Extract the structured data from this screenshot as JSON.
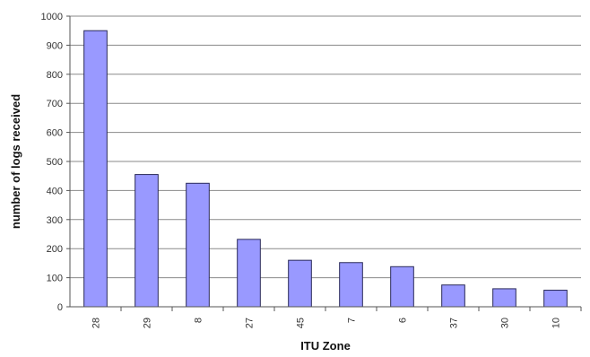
{
  "chart_data": {
    "type": "bar",
    "title": "",
    "xlabel": "ITU Zone",
    "ylabel": "number of logs received",
    "categories": [
      "28",
      "29",
      "8",
      "27",
      "45",
      "7",
      "6",
      "37",
      "30",
      "10"
    ],
    "values": [
      950,
      455,
      425,
      232,
      160,
      152,
      138,
      75,
      62,
      57
    ],
    "ylim": [
      0,
      1000
    ],
    "yticks": [
      "0",
      "100",
      "200",
      "300",
      "400",
      "500",
      "600",
      "700",
      "800",
      "900",
      "1000"
    ],
    "grid": true,
    "legend": "none",
    "colors": {
      "bar": "#9999ff",
      "grid": "#8a8a8a",
      "axis": "#555555"
    }
  }
}
